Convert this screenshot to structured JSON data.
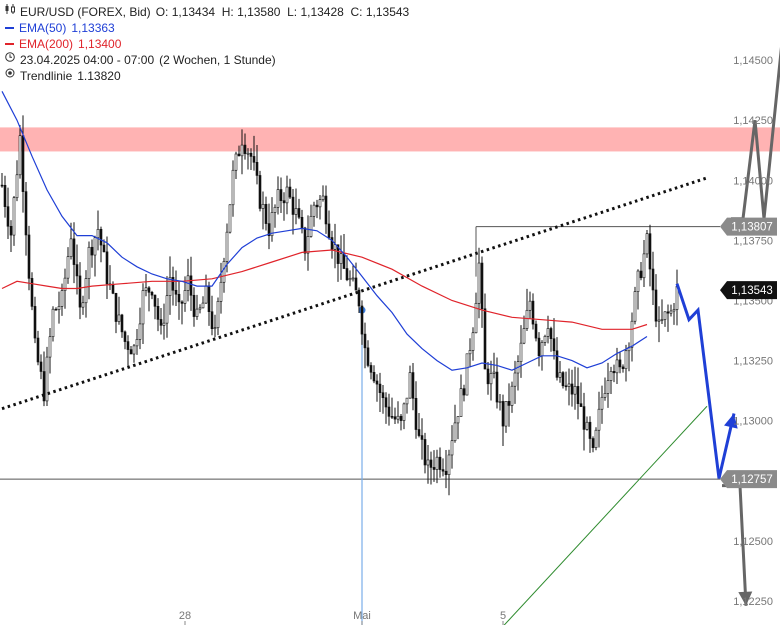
{
  "header": {
    "symbol_icon": "candlestick-icon",
    "symbol": "EUR/USD (FOREX, Bid)",
    "ohlc": "O: 1,13434  H: 1,13580  L: 1,13428  C: 1,13543",
    "ema50_label": "EMA(50)",
    "ema50_value": "1,13363",
    "ema200_label": "EMA(200)",
    "ema200_value": "1,13400",
    "time_icon": "clock-icon",
    "time_range": "23.04.2025 04:00 - 07:00",
    "period": "(2 Wochen, 1 Stunde)",
    "trend_icon": "target-icon",
    "trendline_label": "Trendlinie",
    "trendline_value": "1.13820"
  },
  "colors": {
    "ema50": "#1f3fd6",
    "ema200": "#e0242b",
    "resistance_zone": "#ffb3b3",
    "trendline": "#111111",
    "support_line": "#2e8b2e",
    "forecast_blue": "#1f3fd6",
    "forecast_gray": "#666666",
    "vertical_marker": "#7aaee8"
  },
  "chart_data": {
    "type": "candlestick",
    "instrument": "EUR/USD",
    "y_axis": {
      "side": "right",
      "ylim": [
        1.1215,
        1.1475
      ],
      "ticks": [
        "1,14500",
        "1,14250",
        "1,14000",
        "1,13750",
        "1,13500",
        "1,13250",
        "1,13000",
        "1,12750",
        "1,12500",
        "1,12250"
      ],
      "tick_values": [
        1.145,
        1.1425,
        1.14,
        1.1375,
        1.135,
        1.1325,
        1.13,
        1.1275,
        1.125,
        1.1225
      ]
    },
    "x_axis": {
      "ticks": [
        "28",
        "Mai",
        "5"
      ],
      "tick_bars": [
        61,
        120,
        167
      ],
      "bars_total": 235
    },
    "price_badges": [
      {
        "label": "1,13807",
        "value": 1.13807,
        "style": "light"
      },
      {
        "label": "1,13543",
        "value": 1.13543,
        "style": "dark"
      },
      {
        "label": "1,12757",
        "value": 1.12757,
        "style": "light"
      }
    ],
    "resistance_zone": [
      1.1412,
      1.1422
    ],
    "support_level": 1.12757,
    "swing_high_level": 1.13807,
    "swing_high_start_bar": 158,
    "vertical_marker": {
      "bar": 120,
      "price": 1.1346
    },
    "trendline": {
      "from": [
        0,
        1.1305
      ],
      "to": [
        235,
        1.1401
      ]
    },
    "support_trendline": {
      "from": [
        160,
        1.1205
      ],
      "to": [
        235,
        1.1306
      ]
    },
    "ema50": [
      [
        0,
        1.1437
      ],
      [
        5,
        1.1425
      ],
      [
        10,
        1.141
      ],
      [
        15,
        1.1396
      ],
      [
        20,
        1.1385
      ],
      [
        25,
        1.1377
      ],
      [
        30,
        1.1377
      ],
      [
        35,
        1.1374
      ],
      [
        40,
        1.1368
      ],
      [
        45,
        1.1364
      ],
      [
        50,
        1.1361
      ],
      [
        55,
        1.1359
      ],
      [
        60,
        1.1358
      ],
      [
        65,
        1.1356
      ],
      [
        70,
        1.1356
      ],
      [
        75,
        1.1365
      ],
      [
        80,
        1.1372
      ],
      [
        85,
        1.1376
      ],
      [
        90,
        1.1378
      ],
      [
        95,
        1.1379
      ],
      [
        100,
        1.138
      ],
      [
        105,
        1.1379
      ],
      [
        110,
        1.1375
      ],
      [
        115,
        1.1368
      ],
      [
        120,
        1.136
      ],
      [
        125,
        1.1352
      ],
      [
        130,
        1.1345
      ],
      [
        135,
        1.1336
      ],
      [
        140,
        1.133
      ],
      [
        145,
        1.1325
      ],
      [
        150,
        1.1321
      ],
      [
        155,
        1.1322
      ],
      [
        160,
        1.1324
      ],
      [
        165,
        1.1323
      ],
      [
        170,
        1.1321
      ],
      [
        175,
        1.1324
      ],
      [
        180,
        1.1327
      ],
      [
        185,
        1.1327
      ],
      [
        190,
        1.1325
      ],
      [
        195,
        1.1322
      ],
      [
        200,
        1.1324
      ],
      [
        205,
        1.1328
      ],
      [
        210,
        1.1331
      ],
      [
        215,
        1.1335
      ]
    ],
    "ema200": [
      [
        0,
        1.1355
      ],
      [
        5,
        1.1358
      ],
      [
        10,
        1.1357
      ],
      [
        15,
        1.1356
      ],
      [
        20,
        1.1355
      ],
      [
        25,
        1.1355
      ],
      [
        30,
        1.1356
      ],
      [
        40,
        1.1357
      ],
      [
        50,
        1.1358
      ],
      [
        60,
        1.1358
      ],
      [
        70,
        1.1359
      ],
      [
        80,
        1.1362
      ],
      [
        90,
        1.1366
      ],
      [
        100,
        1.137
      ],
      [
        110,
        1.1371
      ],
      [
        120,
        1.1368
      ],
      [
        130,
        1.1363
      ],
      [
        140,
        1.1356
      ],
      [
        150,
        1.135
      ],
      [
        160,
        1.1346
      ],
      [
        170,
        1.1343
      ],
      [
        180,
        1.1342
      ],
      [
        190,
        1.1341
      ],
      [
        200,
        1.1338
      ],
      [
        210,
        1.1338
      ],
      [
        215,
        1.134
      ]
    ],
    "close_path": [
      [
        0,
        1.1398
      ],
      [
        3,
        1.1378
      ],
      [
        6,
        1.1418
      ],
      [
        9,
        1.1362
      ],
      [
        11,
        1.133
      ],
      [
        14,
        1.1312
      ],
      [
        17,
        1.1345
      ],
      [
        20,
        1.135
      ],
      [
        23,
        1.1378
      ],
      [
        26,
        1.1345
      ],
      [
        29,
        1.137
      ],
      [
        32,
        1.138
      ],
      [
        35,
        1.136
      ],
      [
        38,
        1.1345
      ],
      [
        41,
        1.1333
      ],
      [
        44,
        1.133
      ],
      [
        47,
        1.1352
      ],
      [
        50,
        1.1356
      ],
      [
        53,
        1.1336
      ],
      [
        56,
        1.136
      ],
      [
        59,
        1.1345
      ],
      [
        62,
        1.1358
      ],
      [
        65,
        1.1342
      ],
      [
        68,
        1.1352
      ],
      [
        71,
        1.1335
      ],
      [
        74,
        1.137
      ],
      [
        77,
        1.1402
      ],
      [
        80,
        1.1418
      ],
      [
        83,
        1.141
      ],
      [
        86,
        1.1392
      ],
      [
        89,
        1.138
      ],
      [
        92,
        1.1392
      ],
      [
        95,
        1.1395
      ],
      [
        98,
        1.1386
      ],
      [
        101,
        1.1372
      ],
      [
        104,
        1.139
      ],
      [
        107,
        1.1392
      ],
      [
        110,
        1.1375
      ],
      [
        113,
        1.1365
      ],
      [
        116,
        1.1358
      ],
      [
        119,
        1.135
      ],
      [
        121,
        1.133
      ],
      [
        124,
        1.132
      ],
      [
        127,
        1.1308
      ],
      [
        130,
        1.1302
      ],
      [
        133,
        1.1298
      ],
      [
        136,
        1.1318
      ],
      [
        139,
        1.1292
      ],
      [
        142,
        1.128
      ],
      [
        145,
        1.1284
      ],
      [
        148,
        1.1282
      ],
      [
        151,
        1.13
      ],
      [
        154,
        1.1315
      ],
      [
        157,
        1.134
      ],
      [
        159,
        1.1365
      ],
      [
        161,
        1.132
      ],
      [
        164,
        1.1316
      ],
      [
        167,
        1.13
      ],
      [
        170,
        1.1312
      ],
      [
        173,
        1.133
      ],
      [
        176,
        1.135
      ],
      [
        179,
        1.133
      ],
      [
        182,
        1.1342
      ],
      [
        185,
        1.1318
      ],
      [
        188,
        1.1313
      ],
      [
        191,
        1.1312
      ],
      [
        194,
        1.13
      ],
      [
        197,
        1.1285
      ],
      [
        200,
        1.131
      ],
      [
        203,
        1.1325
      ],
      [
        206,
        1.132
      ],
      [
        209,
        1.1335
      ],
      [
        212,
        1.1358
      ],
      [
        215,
        1.1374
      ],
      [
        217,
        1.1352
      ],
      [
        219,
        1.1338
      ],
      [
        221,
        1.1343
      ],
      [
        223,
        1.1345
      ],
      [
        225,
        1.1354
      ]
    ],
    "forecast_blue": [
      [
        225,
        1.1357
      ],
      [
        229,
        1.1342
      ],
      [
        232,
        1.1346
      ],
      [
        239,
        1.1276
      ],
      [
        244,
        1.1303
      ]
    ],
    "forecast_gray_up": [
      [
        243,
        1.1384
      ],
      [
        247,
        1.1384
      ],
      [
        251,
        1.1425
      ],
      [
        254,
        1.1384
      ],
      [
        262,
        1.1482
      ]
    ],
    "forecast_gray_down": [
      [
        240,
        1.1273
      ],
      [
        246,
        1.1273
      ],
      [
        248,
        1.1223
      ]
    ]
  }
}
